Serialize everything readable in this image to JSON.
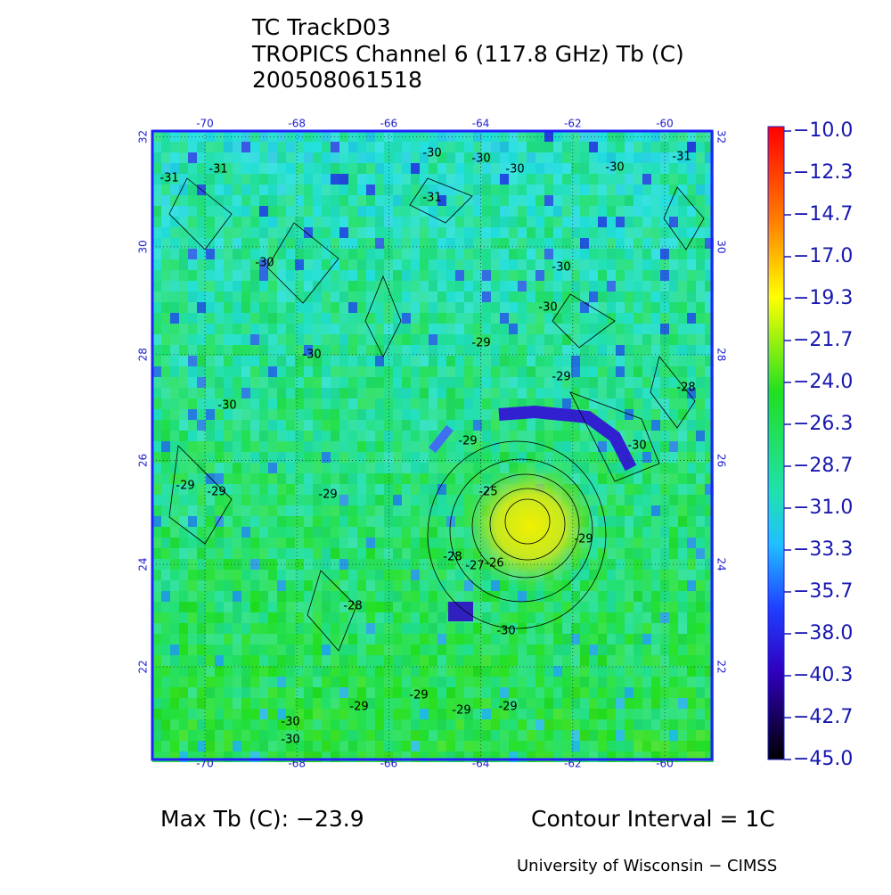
{
  "header": {
    "lines": [
      "TC TrackD03",
      "TROPICS Channel 6 (117.8 GHz) Tb (C)",
      "200508061518"
    ]
  },
  "map": {
    "lon_ticks": [
      -70,
      -68,
      -66,
      -64,
      -62,
      -60
    ],
    "lat_ticks": [
      32,
      30,
      28,
      26,
      24,
      22
    ],
    "contour_labels": [
      "-31",
      "-31",
      "-30",
      "-30",
      "-30",
      "-30",
      "-31",
      "-31",
      "-30",
      "-30",
      "-30",
      "-29",
      "-30",
      "-29",
      "-30",
      "-28",
      "-29",
      "-30",
      "-29",
      "-29",
      "-29",
      "-25",
      "-29",
      "-28",
      "-27",
      "-26",
      "-28",
      "-30",
      "-29",
      "-29",
      "-29",
      "-29",
      "-30",
      "-30"
    ]
  },
  "colorbar": {
    "labels": [
      "−10.0",
      "−12.3",
      "−14.7",
      "−17.0",
      "−19.3",
      "−21.7",
      "−24.0",
      "−26.3",
      "−28.7",
      "−31.0",
      "−33.3",
      "−35.7",
      "−38.0",
      "−40.3",
      "−42.7",
      "−45.0"
    ]
  },
  "footer": {
    "max_tb": "Max Tb (C): −23.9",
    "contour_interval": "Contour Interval = 1C",
    "credit": "University of Wisconsin − CIMSS"
  }
}
